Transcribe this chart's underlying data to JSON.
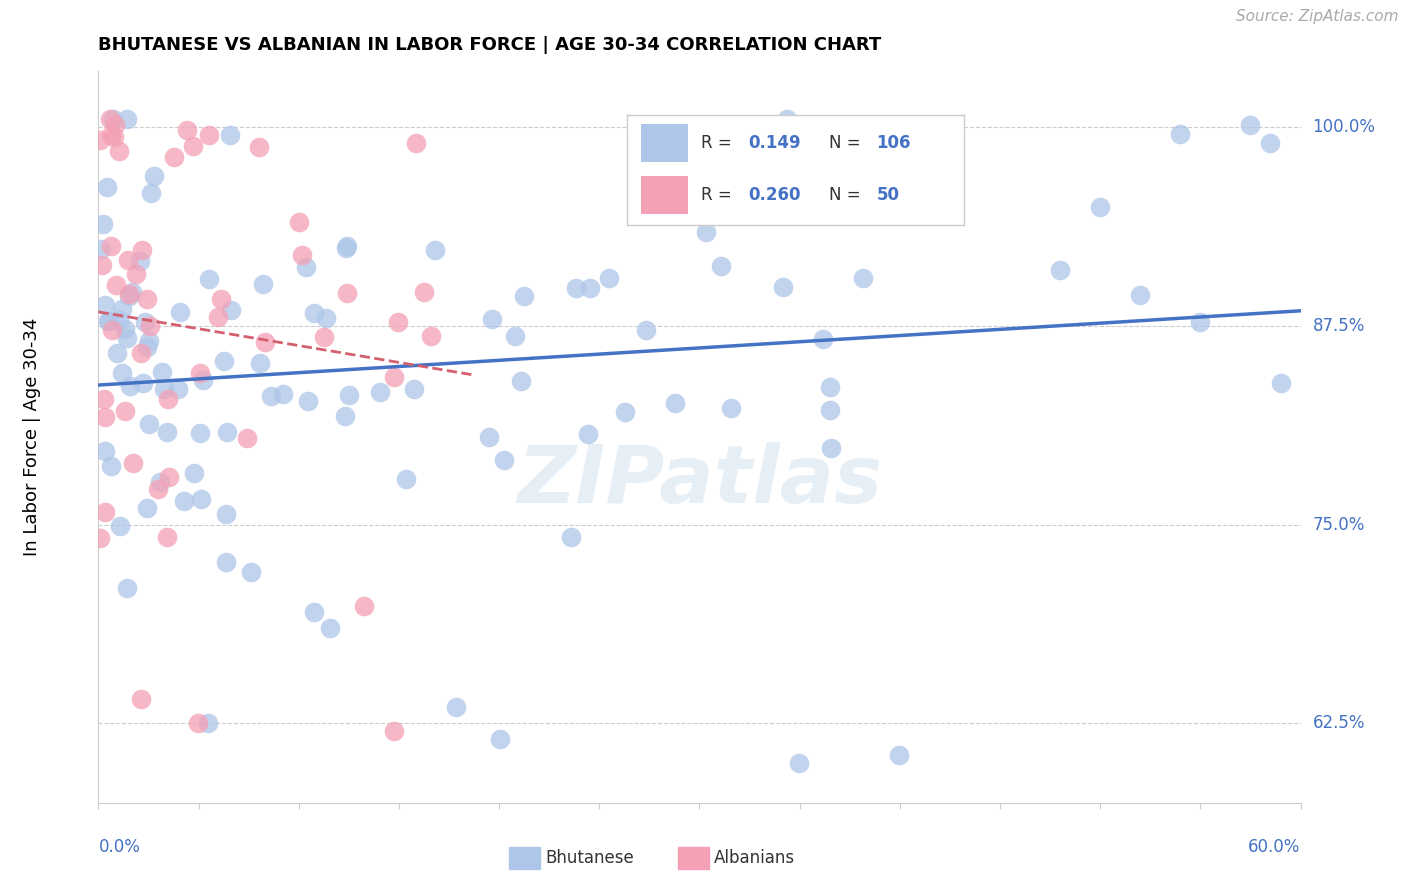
{
  "title": "BHUTANESE VS ALBANIAN IN LABOR FORCE | AGE 30-34 CORRELATION CHART",
  "source_text": "Source: ZipAtlas.com",
  "ylabel": "In Labor Force | Age 30-34",
  "ytick_labels": [
    "62.5%",
    "75.0%",
    "87.5%",
    "100.0%"
  ],
  "ytick_values": [
    0.625,
    0.75,
    0.875,
    1.0
  ],
  "xlim": [
    0.0,
    0.6
  ],
  "ylim": [
    0.575,
    1.035
  ],
  "bhutanese_color": "#aec6e8",
  "albanian_color": "#f4a0b5",
  "bhutanese_line_color": "#4472c4",
  "albanian_line_color": "#d45f6e",
  "legend_R_bhutanese": "0.149",
  "legend_N_bhutanese": "106",
  "legend_R_albanian": "0.260",
  "legend_N_albanian": "50",
  "watermark": "ZIPatlas",
  "label_color": "#4472c4",
  "text_color": "#333333",
  "grid_color": "#cccccc",
  "source_color": "#aaaaaa"
}
